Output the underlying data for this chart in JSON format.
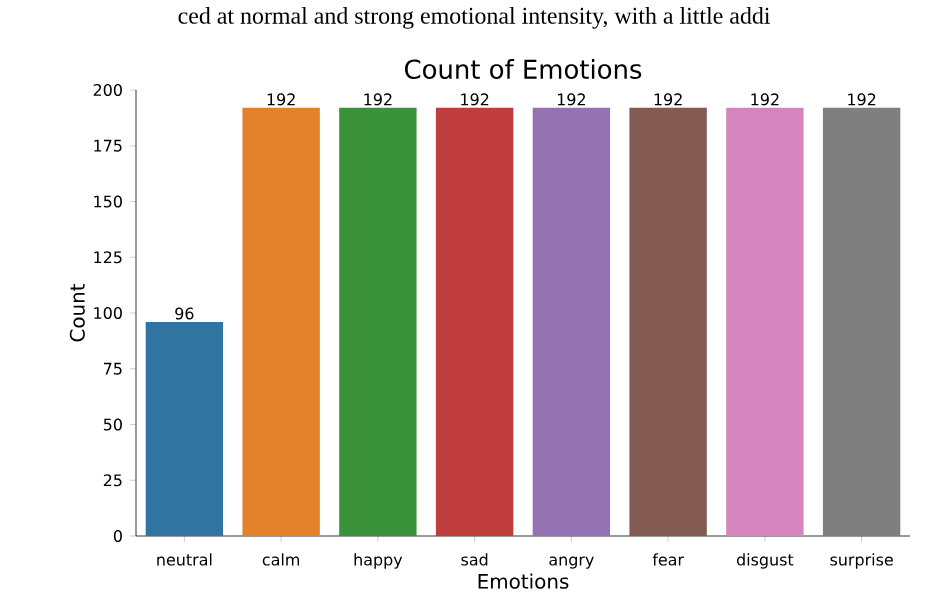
{
  "chart_data": {
    "type": "bar",
    "title": "Count of Emotions",
    "xlabel": "Emotions",
    "ylabel": "Count",
    "annotations": [
      "ced at normal and strong emotional intensity, with a little addi"
    ],
    "categories": [
      "neutral",
      "calm",
      "happy",
      "sad",
      "angry",
      "fear",
      "disgust",
      "surprise"
    ],
    "values": [
      96,
      192,
      192,
      192,
      192,
      192,
      192,
      192
    ],
    "colors": [
      "#3274a1",
      "#e1812c",
      "#3a923a",
      "#c03d3e",
      "#9372b2",
      "#845b53",
      "#d684bd",
      "#7f7f7f"
    ],
    "ylim": [
      0,
      200
    ],
    "yticks": [
      0,
      25,
      50,
      75,
      100,
      125,
      150,
      175,
      200
    ],
    "data_labels": true,
    "grid": false
  }
}
